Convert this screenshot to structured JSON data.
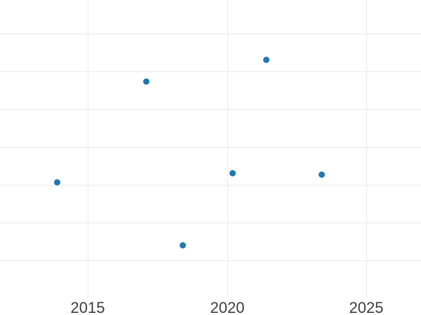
{
  "chart_data": {
    "type": "scatter",
    "title": "",
    "xlabel": "",
    "ylabel": "",
    "x_ticks": [
      2015,
      2020,
      2025
    ],
    "x_tick_labels": [
      "2015",
      "2020",
      "2025"
    ],
    "y_tick_labels_visible": false,
    "y_axis_note": "No y tick labels are visible in the image; y values below are estimated in gridline units where the bottom visible gridline = 0 and each gridline step = 1.",
    "points": [
      {
        "x": 2013.9,
        "y": 2.06
      },
      {
        "x": 2017.1,
        "y": 4.74
      },
      {
        "x": 2018.4,
        "y": 0.39
      },
      {
        "x": 2020.2,
        "y": 2.3
      },
      {
        "x": 2021.4,
        "y": 5.31
      },
      {
        "x": 2023.4,
        "y": 2.26
      }
    ],
    "xlim": [
      2011.85,
      2026.96
    ],
    "ylim": [
      -1.0,
      6.89
    ],
    "y_gridline_values": [
      0,
      1,
      2,
      3,
      4,
      5,
      6
    ],
    "grid": true,
    "legend": false,
    "colors": {
      "marker": "#1f77b4",
      "gridline": "#e9e9e9",
      "tick_label": "#3d3d3d",
      "background": "#ffffff"
    },
    "marker_diameter_px": 9
  }
}
